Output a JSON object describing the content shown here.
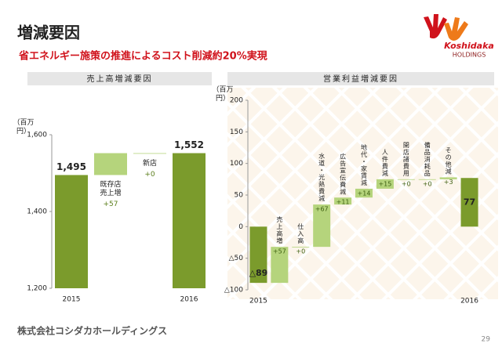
{
  "header": {
    "title": "増減要因",
    "subtitle": "省エネルギー施策の推進によるコスト削減約20%実現",
    "logo_text": "Koshidaka",
    "logo_sub": "HOLDINGS"
  },
  "chart_data": [
    {
      "type": "waterfall",
      "title": "売上高増減要因",
      "y_label": "（百万円）",
      "categories": [
        "2015",
        "既存店売上増",
        "新店",
        "2016"
      ],
      "values": [
        1495,
        57,
        0,
        1552
      ],
      "value_labels": [
        "1,495",
        "+57",
        "+0",
        "1,552"
      ],
      "measure": [
        "total",
        "relative",
        "relative",
        "total"
      ],
      "colors": {
        "total": "#7b9b2c",
        "relative": "#b5d47c"
      },
      "ylim": [
        1200,
        1600
      ],
      "yticks": [
        {
          "value": 1200,
          "label": "1,200"
        },
        {
          "value": 1400,
          "label": "1,400"
        },
        {
          "value": 1600,
          "label": "1,600"
        }
      ]
    },
    {
      "type": "waterfall",
      "title": "営業利益増減要因",
      "y_label": "（百万円）",
      "categories": [
        "2015",
        "売上高増",
        "仕入高",
        "水道・光熱費減",
        "広告宣伝費減",
        "地代・家賃減",
        "人件費減",
        "開店諸費用",
        "備品消耗品",
        "その他減",
        "2016"
      ],
      "values": [
        -89,
        57,
        0,
        67,
        11,
        14,
        15,
        0,
        0,
        3,
        77
      ],
      "value_labels": [
        "△89",
        "+57",
        "+0",
        "+67",
        "+11",
        "+14",
        "+15",
        "+0",
        "+0",
        "+3",
        "77"
      ],
      "measure": [
        "total",
        "relative",
        "relative",
        "relative",
        "relative",
        "relative",
        "relative",
        "relative",
        "relative",
        "relative",
        "total"
      ],
      "colors": {
        "total": "#7b9b2c",
        "relative": "#b5d47c"
      },
      "ylim": [
        -100,
        200
      ],
      "yticks": [
        {
          "value": -100,
          "label": "△100"
        },
        {
          "value": -50,
          "label": "△50"
        },
        0,
        50,
        100,
        150,
        200
      ]
    }
  ],
  "footer": {
    "company": "株式会社コシダカホールディングス",
    "page": "29"
  }
}
